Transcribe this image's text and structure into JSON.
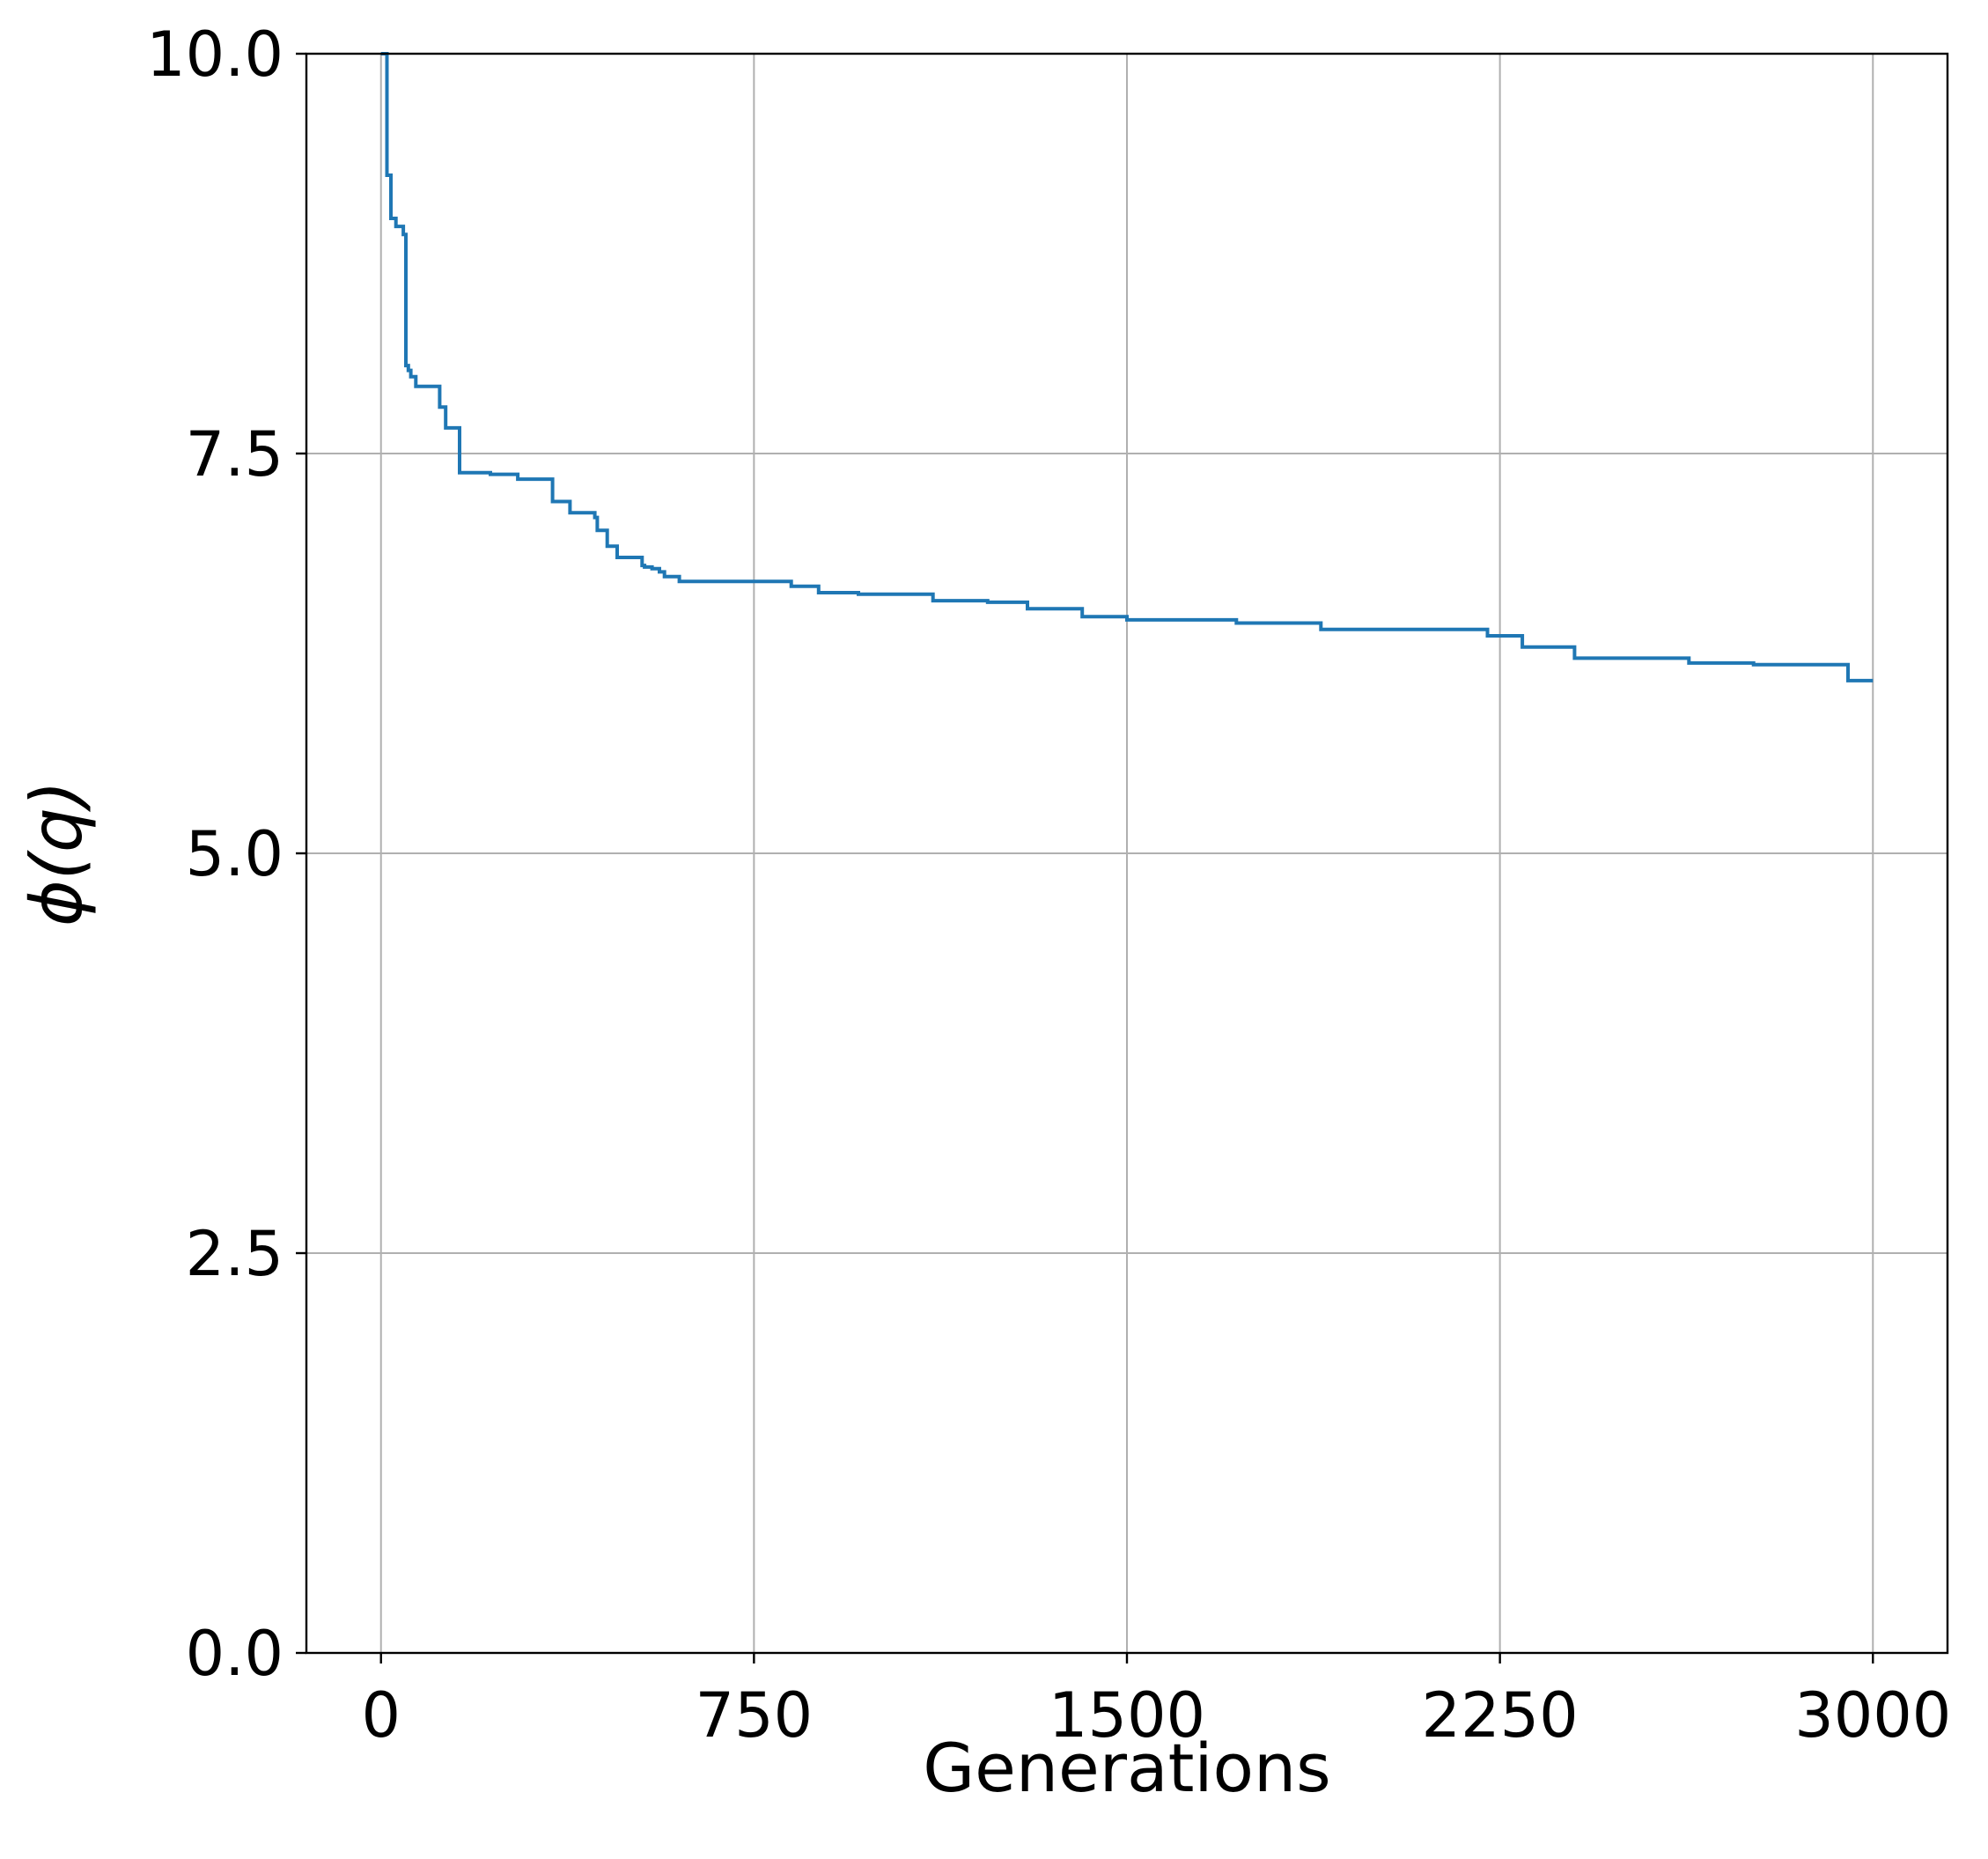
{
  "chart_data": {
    "type": "line",
    "title": "",
    "xlabel": "Generations",
    "ylabel": "ϕ(q)",
    "xlim": [
      -150,
      3150
    ],
    "ylim": [
      0,
      10
    ],
    "xticks": [
      0,
      750,
      1500,
      2250,
      3000
    ],
    "xtick_labels": [
      "0",
      "750",
      "1500",
      "2250",
      "3000"
    ],
    "yticks": [
      0.0,
      2.5,
      5.0,
      7.5,
      10.0
    ],
    "ytick_labels": [
      "0.0",
      "2.5",
      "5.0",
      "7.5",
      "10.0"
    ],
    "grid": true,
    "legend": "none",
    "series": [
      {
        "name": "",
        "color": "#1f77b4",
        "step": true,
        "x": [
          0,
          12,
          20,
          30,
          35,
          45,
          50,
          55,
          60,
          70,
          80,
          118,
          125,
          130,
          150,
          158,
          220,
          275,
          335,
          345,
          365,
          380,
          430,
          435,
          455,
          460,
          475,
          525,
          530,
          545,
          560,
          570,
          585,
          600,
          820,
          825,
          875,
          880,
          960,
          1100,
          1110,
          1220,
          1290,
          1300,
          1400,
          1410,
          1490,
          1500,
          1530,
          1720,
          1725,
          1890,
          1895,
          2220,
          2225,
          2285,
          2295,
          2395,
          2400,
          2545,
          2625,
          2630,
          2750,
          2760,
          2945,
          2950,
          3000
        ],
        "y": [
          10.0,
          9.24,
          8.97,
          8.92,
          8.92,
          8.87,
          8.05,
          8.02,
          7.98,
          7.92,
          7.92,
          7.79,
          7.79,
          7.66,
          7.66,
          7.38,
          7.37,
          7.34,
          7.34,
          7.2,
          7.2,
          7.13,
          7.1,
          7.02,
          6.92,
          6.92,
          6.85,
          6.8,
          6.79,
          6.78,
          6.76,
          6.73,
          6.73,
          6.7,
          6.7,
          6.67,
          6.67,
          6.63,
          6.62,
          6.62,
          6.58,
          6.57,
          6.57,
          6.53,
          6.53,
          6.48,
          6.48,
          6.46,
          6.46,
          6.44,
          6.44,
          6.4,
          6.4,
          6.4,
          6.36,
          6.36,
          6.29,
          6.29,
          6.22,
          6.22,
          6.22,
          6.19,
          6.19,
          6.18,
          6.18,
          6.08,
          6.08
        ]
      }
    ]
  }
}
